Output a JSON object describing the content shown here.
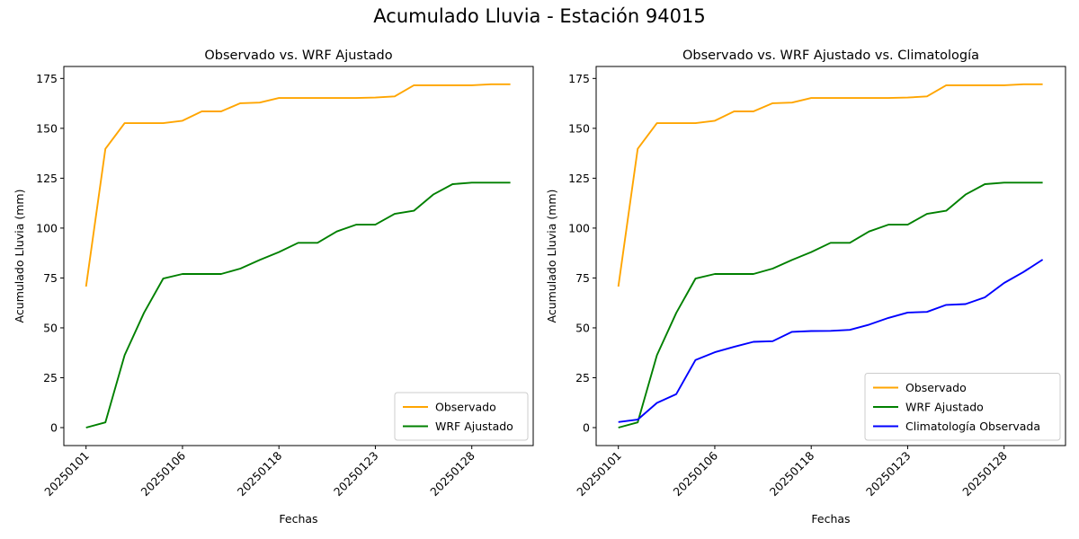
{
  "figure": {
    "suptitle": "Acumulado Lluvia - Estación 94015"
  },
  "chart_data": [
    {
      "type": "line",
      "title": "Observado vs. WRF Ajustado",
      "xlabel": "Fechas",
      "ylabel": "Acumulado Lluvia (mm)",
      "ylim": [
        -9,
        181
      ],
      "yticks": [
        0,
        25,
        50,
        75,
        100,
        125,
        150,
        175
      ],
      "x_tick_labels": [
        "20250101",
        "20250106",
        "20250118",
        "20250123",
        "20250128"
      ],
      "x_tick_positions": [
        0,
        5,
        10,
        15,
        20
      ],
      "grid": false,
      "legend": "lower-right",
      "series": [
        {
          "name": "Observado",
          "color": "#FFA500",
          "values": [
            70.7,
            139.7,
            152.6,
            152.6,
            152.6,
            153.8,
            158.5,
            158.5,
            162.6,
            162.9,
            165.2,
            165.2,
            165.2,
            165.2,
            165.2,
            165.4,
            166.0,
            171.6,
            171.6,
            171.6,
            171.6,
            172.1,
            172.1
          ]
        },
        {
          "name": "WRF Ajustado",
          "color": "#008000",
          "values": [
            0.0,
            2.6,
            36.3,
            57.5,
            74.7,
            77.0,
            77.0,
            77.0,
            79.7,
            84.0,
            88.0,
            92.6,
            92.6,
            98.3,
            101.7,
            101.7,
            107.1,
            108.7,
            116.8,
            122.0,
            122.8,
            122.8,
            122.8
          ]
        }
      ]
    },
    {
      "type": "line",
      "title": "Observado vs. WRF Ajustado vs. Climatología",
      "xlabel": "Fechas",
      "ylabel": "Acumulado Lluvia (mm)",
      "ylim": [
        -9,
        181
      ],
      "yticks": [
        0,
        25,
        50,
        75,
        100,
        125,
        150,
        175
      ],
      "x_tick_labels": [
        "20250101",
        "20250106",
        "20250118",
        "20250123",
        "20250128"
      ],
      "x_tick_positions": [
        0,
        5,
        10,
        15,
        20
      ],
      "grid": false,
      "legend": "lower-right",
      "series": [
        {
          "name": "Observado",
          "color": "#FFA500",
          "values": [
            70.7,
            139.7,
            152.6,
            152.6,
            152.6,
            153.8,
            158.5,
            158.5,
            162.6,
            162.9,
            165.2,
            165.2,
            165.2,
            165.2,
            165.2,
            165.4,
            166.0,
            171.6,
            171.6,
            171.6,
            171.6,
            172.1,
            172.1
          ]
        },
        {
          "name": "WRF Ajustado",
          "color": "#008000",
          "values": [
            0.0,
            2.6,
            36.3,
            57.5,
            74.7,
            77.0,
            77.0,
            77.0,
            79.7,
            84.0,
            88.0,
            92.6,
            92.6,
            98.3,
            101.7,
            101.7,
            107.1,
            108.7,
            116.8,
            122.0,
            122.8,
            122.8,
            122.8
          ]
        },
        {
          "name": "Climatología Observada",
          "color": "#0000FF",
          "values": [
            2.8,
            4.0,
            12.4,
            16.8,
            33.9,
            37.8,
            40.5,
            43.0,
            43.3,
            48.0,
            48.4,
            48.5,
            49.0,
            51.6,
            55.0,
            57.7,
            58.0,
            61.5,
            61.9,
            65.3,
            72.5,
            78.0,
            84.2
          ]
        }
      ]
    }
  ]
}
